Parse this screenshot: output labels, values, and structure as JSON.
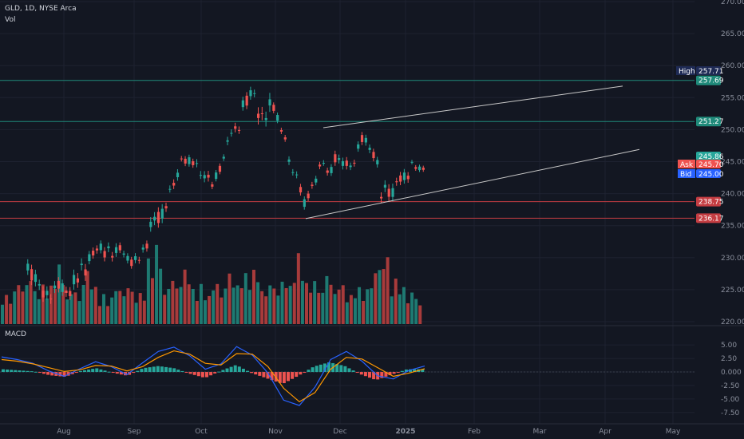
{
  "header": {
    "symbol_line": "GLD, 1D, NYSE Arca",
    "volume_label": "Vol"
  },
  "macd_label": "MACD",
  "colors": {
    "background": "#131722",
    "up": "#26a69a",
    "down": "#ef5350",
    "up_vol": "#1e7a72",
    "down_vol": "#a83b3b",
    "grid": "#1e2230",
    "resistance_line": "#1f8a7a",
    "support_line": "#c43d42",
    "trendline": "#c8c8c8",
    "macd_line": "#2962ff",
    "signal_line": "#ff9800",
    "high_tag": "#1e2a55",
    "ask_tag": "#ef5350",
    "bid_tag": "#2962ff"
  },
  "chart_data": [
    {
      "type": "candlestick",
      "title": "GLD, 1D, NYSE Arca",
      "price_axis": {
        "ticks": [
          "270.00",
          "265.00",
          "260.00",
          "255.00",
          "250.00",
          "245.00",
          "240.00",
          "235.00",
          "230.00",
          "225.00",
          "220.00"
        ],
        "ylim": [
          220,
          270
        ]
      },
      "time_axis": {
        "ticks": [
          "Aug",
          "Sep",
          "Oct",
          "Nov",
          "Dec",
          "2025",
          "Feb",
          "Mar",
          "Apr",
          "May"
        ]
      },
      "horizontal_levels": [
        {
          "value": 257.69,
          "label": "257.69",
          "kind": "resistance"
        },
        {
          "value": 251.27,
          "label": "251.27",
          "kind": "resistance"
        },
        {
          "value": 238.75,
          "label": "238.75",
          "kind": "support"
        },
        {
          "value": 236.17,
          "label": "236.17",
          "kind": "support"
        }
      ],
      "price_tags": [
        {
          "name": "High",
          "value": "257.71"
        },
        {
          "name": "",
          "value": "245.86"
        },
        {
          "name": "Ask",
          "value": "245.70"
        },
        {
          "name": "Bid",
          "value": "245.00"
        }
      ],
      "trendlines": [
        {
          "from": [
            "Nov",
            250.3
          ],
          "to": [
            "Apr",
            256.8
          ]
        },
        {
          "from": [
            "Nov",
            236.1
          ],
          "to": [
            "Apr",
            246.9
          ]
        }
      ],
      "approx_candles": [
        {
          "date": "2024-07-15",
          "open": 226,
          "high": 229,
          "low": 224,
          "close": 228
        },
        {
          "date": "2024-07-22",
          "open": 225.5,
          "high": 227,
          "low": 222,
          "close": 224
        },
        {
          "date": "2024-07-29",
          "open": 224.8,
          "high": 226.8,
          "low": 222.5,
          "close": 226
        },
        {
          "date": "2024-08-05",
          "open": 223.5,
          "high": 227.5,
          "low": 221.5,
          "close": 226.6
        },
        {
          "date": "2024-08-12",
          "open": 229,
          "high": 230.8,
          "low": 227.2,
          "close": 230
        },
        {
          "date": "2024-08-19",
          "open": 232.4,
          "high": 234,
          "low": 229.6,
          "close": 230.8
        },
        {
          "date": "2024-08-26",
          "open": 231,
          "high": 232.4,
          "low": 229.3,
          "close": 231.4
        },
        {
          "date": "2024-09-02",
          "open": 228.5,
          "high": 230.5,
          "low": 227,
          "close": 229.5
        },
        {
          "date": "2024-09-09",
          "open": 232.5,
          "high": 236.2,
          "low": 231,
          "close": 235.6
        },
        {
          "date": "2024-09-16",
          "open": 236.9,
          "high": 239.6,
          "low": 235.7,
          "close": 238.5
        },
        {
          "date": "2024-09-23",
          "open": 244.8,
          "high": 246.6,
          "low": 243.7,
          "close": 245.2
        },
        {
          "date": "2024-09-30",
          "open": 245,
          "high": 246.8,
          "low": 242.4,
          "close": 244
        },
        {
          "date": "2024-10-07",
          "open": 241.6,
          "high": 243,
          "low": 240.2,
          "close": 241.5
        },
        {
          "date": "2024-10-14",
          "open": 246.5,
          "high": 249.5,
          "low": 245.5,
          "close": 248.8
        },
        {
          "date": "2024-10-21",
          "open": 251,
          "high": 254.5,
          "low": 250.5,
          "close": 253.8
        },
        {
          "date": "2024-10-28",
          "open": 257,
          "high": 257.7,
          "low": 250.5,
          "close": 251.5
        },
        {
          "date": "2024-11-04",
          "open": 254,
          "high": 255.5,
          "low": 252.8,
          "close": 253.5
        },
        {
          "date": "2024-11-11",
          "open": 246.6,
          "high": 247.5,
          "low": 244,
          "close": 245.2
        },
        {
          "date": "2024-11-18",
          "open": 239.5,
          "high": 240.6,
          "low": 237.4,
          "close": 238.5
        },
        {
          "date": "2024-11-25",
          "open": 243.5,
          "high": 245.3,
          "low": 242.2,
          "close": 244.6
        },
        {
          "date": "2024-12-02",
          "open": 243.2,
          "high": 246.5,
          "low": 242.5,
          "close": 245.5
        },
        {
          "date": "2024-12-09",
          "open": 244.5,
          "high": 246,
          "low": 242.6,
          "close": 243.8
        },
        {
          "date": "2024-12-16",
          "open": 250.2,
          "high": 251.2,
          "low": 247.6,
          "close": 248.4
        },
        {
          "date": "2024-12-23",
          "open": 243.4,
          "high": 244.3,
          "low": 239.2,
          "close": 240.3
        },
        {
          "date": "2024-12-30",
          "open": 240.4,
          "high": 242.4,
          "low": 238.4,
          "close": 241.8
        },
        {
          "date": "2025-01-06",
          "open": 243.5,
          "high": 245.3,
          "low": 243.1,
          "close": 244.5
        }
      ]
    },
    {
      "type": "bar",
      "title": "Vol",
      "approx_values": [
        0.42,
        0.62,
        0.5,
        0.72,
        0.45,
        0.66,
        0.38,
        0.52,
        0.44,
        0.98,
        0.58,
        0.7,
        0.48,
        0.55,
        0.66,
        0.74,
        0.52,
        0.6,
        0.86,
        0.55,
        0.64,
        0.47,
        0.5,
        0.9,
        0.6,
        0.4
      ]
    },
    {
      "type": "line",
      "title": "MACD",
      "yaxis_ticks": [
        "5.00",
        "2.50",
        "0.000",
        "-2.50",
        "-5.00",
        "-7.50"
      ],
      "ylim": [
        -9,
        6.5
      ],
      "series": [
        {
          "name": "",
          "role": "macd",
          "values": [
            2.8,
            2.3,
            1.6,
            0.2,
            -0.8,
            0.6,
            1.9,
            1.0,
            -0.5,
            1.7,
            3.8,
            4.6,
            3.0,
            0.5,
            1.5,
            4.7,
            3.1,
            -0.2,
            -5.2,
            -6.2,
            -2.8,
            2.3,
            3.8,
            2.0,
            -0.7,
            -1.3,
            0.3,
            1.1
          ]
        },
        {
          "name": "",
          "role": "signal",
          "values": [
            2.3,
            2.0,
            1.5,
            0.8,
            0.1,
            0.4,
            1.2,
            1.1,
            0.2,
            1.0,
            2.7,
            3.9,
            3.3,
            1.6,
            1.3,
            3.4,
            3.3,
            1.0,
            -3.0,
            -5.5,
            -3.8,
            0.5,
            2.7,
            2.4,
            0.8,
            -0.8,
            -0.2,
            0.6
          ]
        },
        {
          "name": "",
          "role": "histogram",
          "values": [
            0.5,
            0.3,
            0.1,
            -0.6,
            -0.9,
            0.2,
            0.7,
            -0.1,
            -0.7,
            0.7,
            1.1,
            0.7,
            -0.3,
            -1.1,
            0.2,
            1.3,
            -0.2,
            -1.2,
            -2.2,
            -0.7,
            1.0,
            1.8,
            1.1,
            -0.4,
            -1.5,
            -0.5,
            0.5,
            0.5
          ]
        }
      ]
    }
  ]
}
